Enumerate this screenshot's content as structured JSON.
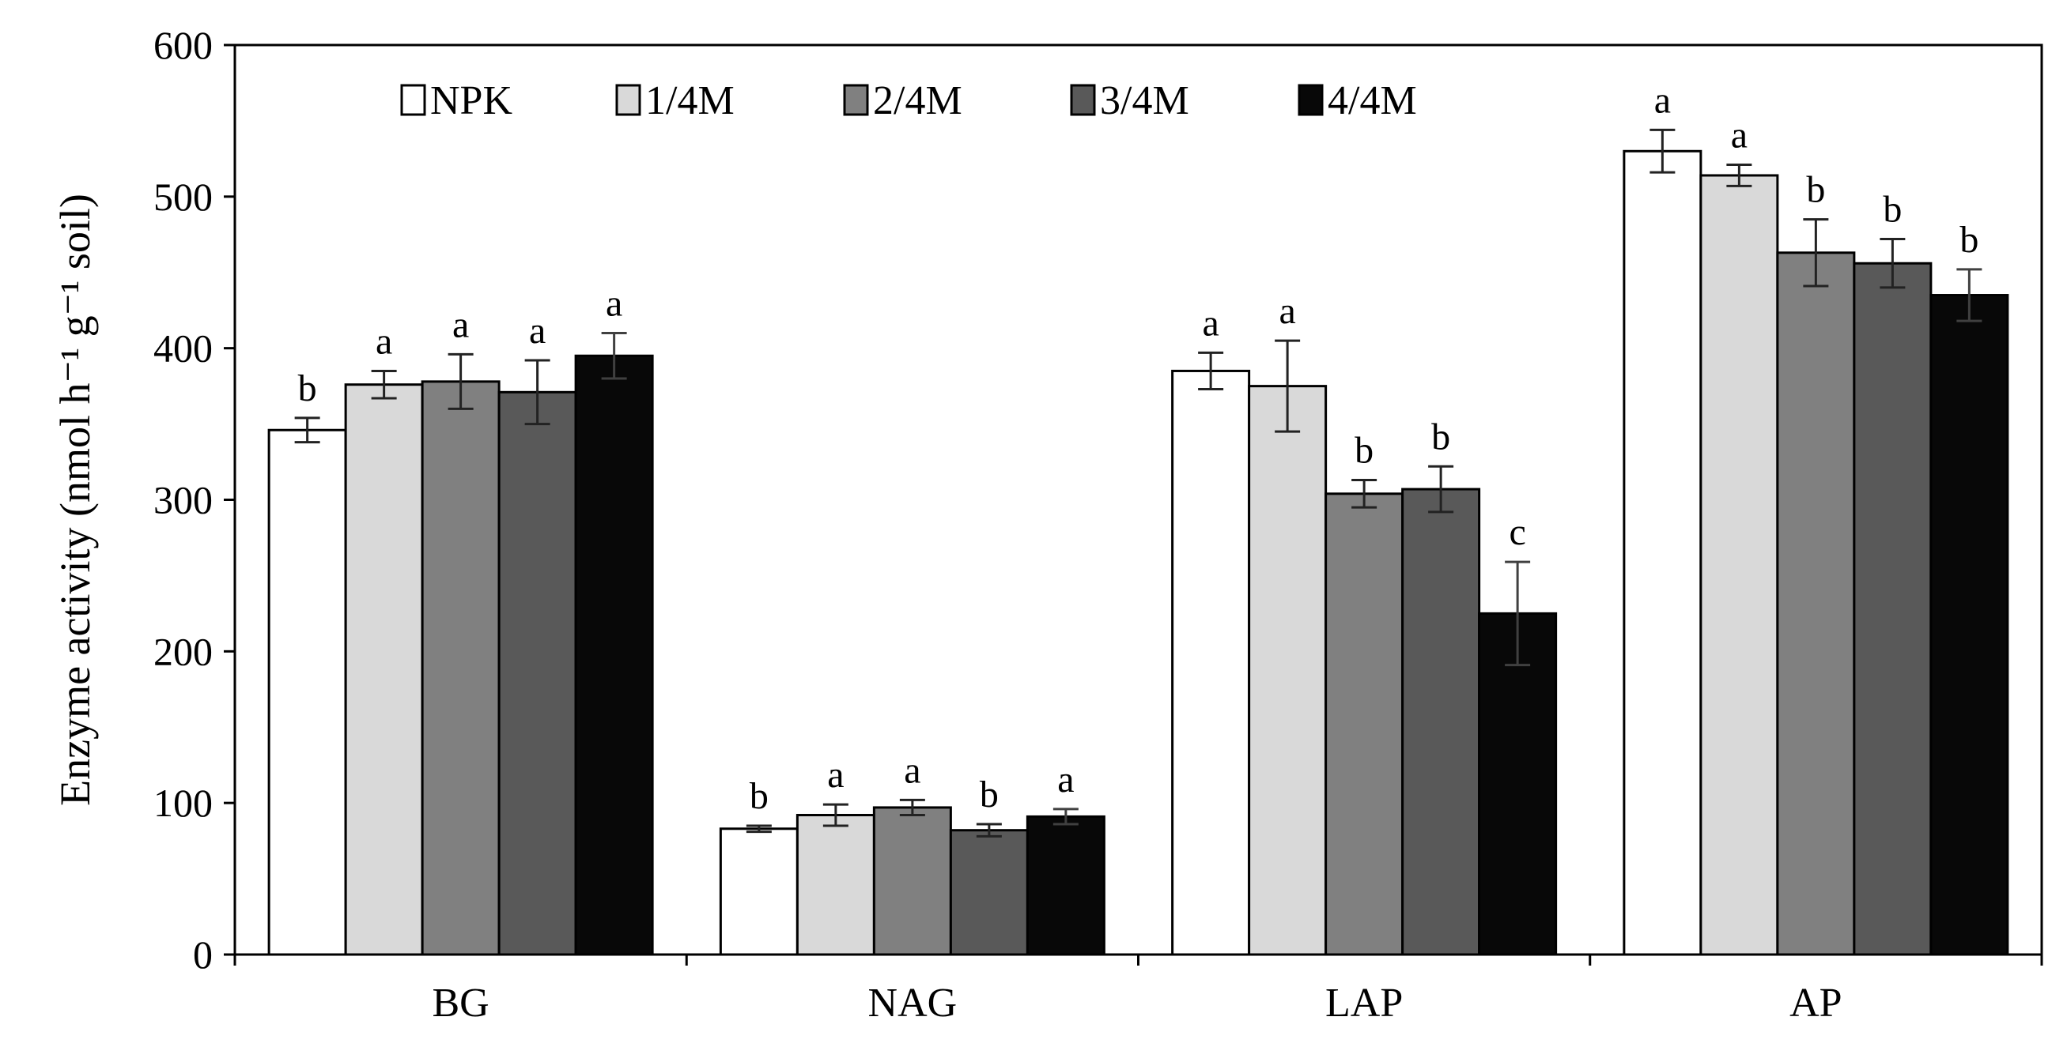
{
  "chart_data": {
    "type": "bar",
    "title": "",
    "xlabel": "",
    "ylabel": "Enzyme activity (nmol h⁻¹ g⁻¹ soil)",
    "ylim": [
      0,
      600
    ],
    "yticks": [
      0,
      100,
      200,
      300,
      400,
      500,
      600
    ],
    "ytick_labels": [
      "0",
      "100",
      "200",
      "300",
      "400",
      "500",
      "600"
    ],
    "grid": false,
    "legend_position": "top-left",
    "categories": [
      "BG",
      "NAG",
      "LAP",
      "AP"
    ],
    "series": [
      {
        "name": "NPK",
        "color": "#ffffff",
        "values": [
          346,
          83,
          385,
          530
        ],
        "errors": [
          8,
          2,
          12,
          14
        ],
        "significance": [
          "b",
          "b",
          "a",
          "a"
        ]
      },
      {
        "name": "1/4M",
        "color": "#d9d9d9",
        "values": [
          376,
          92,
          375,
          514
        ],
        "errors": [
          9,
          7,
          30,
          7
        ],
        "significance": [
          "a",
          "a",
          "a",
          "a"
        ]
      },
      {
        "name": "2/4M",
        "color": "#808080",
        "values": [
          378,
          97,
          304,
          463
        ],
        "errors": [
          18,
          5,
          9,
          22
        ],
        "significance": [
          "a",
          "a",
          "b",
          "b"
        ]
      },
      {
        "name": "3/4M",
        "color": "#595959",
        "values": [
          371,
          82,
          307,
          456
        ],
        "errors": [
          21,
          4,
          15,
          16
        ],
        "significance": [
          "a",
          "b",
          "b",
          "b"
        ]
      },
      {
        "name": "4/4M",
        "color": "#080808",
        "values": [
          395,
          91,
          225,
          435
        ],
        "errors": [
          15,
          5,
          34,
          17
        ],
        "significance": [
          "a",
          "a",
          "c",
          "b"
        ]
      }
    ]
  }
}
